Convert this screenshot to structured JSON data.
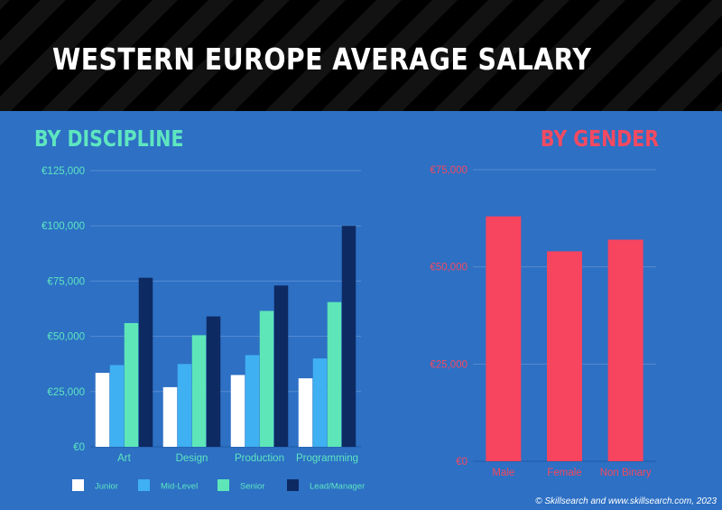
{
  "header": {
    "title": "WESTERN EUROPE AVERAGE SALARY",
    "banner_color": "#3f7fcc"
  },
  "sections": {
    "discipline_title": "BY DISCIPLINE",
    "gender_title": "BY GENDER"
  },
  "footer": {
    "credit": "© Skillsearch and www.skillsearch.com, 2023"
  },
  "chart_data": [
    {
      "type": "bar",
      "title": "BY DISCIPLINE",
      "categories": [
        "Art",
        "Design",
        "Production",
        "Programming"
      ],
      "series": [
        {
          "name": "Junior",
          "color": "#ffffff",
          "values": [
            33500,
            27000,
            32500,
            31000
          ]
        },
        {
          "name": "Mid-Level",
          "color": "#3fb0f2",
          "values": [
            37000,
            37500,
            41500,
            40000
          ]
        },
        {
          "name": "Senior",
          "color": "#5ee6b8",
          "values": [
            56000,
            50500,
            61500,
            65500
          ]
        },
        {
          "name": "Lead/Manager",
          "color": "#0e2a63",
          "values": [
            76500,
            59000,
            73000,
            100000
          ]
        }
      ],
      "ylim": [
        0,
        125000
      ],
      "yticks": [
        0,
        25000,
        50000,
        75000,
        100000,
        125000
      ],
      "ytick_labels": [
        "€0",
        "€25,000",
        "€50,000",
        "€75,000",
        "€100,000",
        "€125,000"
      ],
      "tick_color": "#5ee6c0",
      "grid": true,
      "legend": "bottom"
    },
    {
      "type": "bar",
      "title": "BY GENDER",
      "categories": [
        "Male",
        "Female",
        "Non Binary"
      ],
      "series": [
        {
          "color": "#f7445f",
          "values": [
            63000,
            54000,
            57000
          ]
        }
      ],
      "ylim": [
        0,
        75000
      ],
      "yticks": [
        0,
        25000,
        50000,
        75000
      ],
      "ytick_labels": [
        "€0",
        "€25,000",
        "€50,000",
        "€75,000"
      ],
      "tick_color": "#f24a61",
      "grid": true,
      "legend": "none"
    }
  ]
}
